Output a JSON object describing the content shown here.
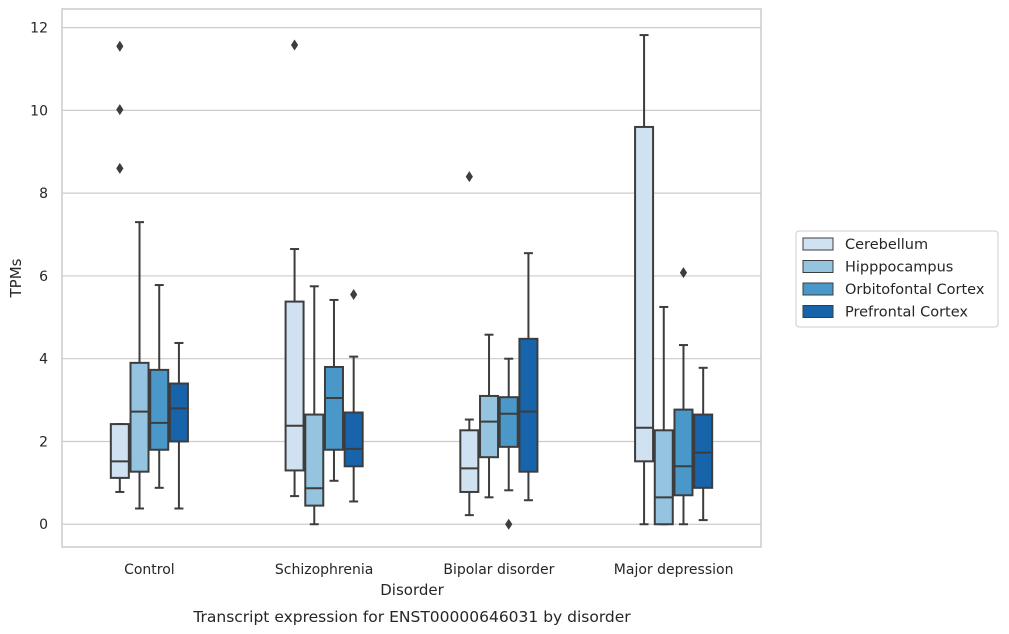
{
  "chart_data": {
    "type": "box",
    "xlabel": "Disorder",
    "ylabel": "TPMs",
    "caption": "Transcript expression for ENST00000646031 by disorder",
    "ylim": [
      -0.55,
      12.45
    ],
    "yticks": [
      0,
      2,
      4,
      6,
      8,
      10,
      12
    ],
    "grid": true,
    "legend_position": "right",
    "categories": [
      "Control",
      "Schizophrenia",
      "Bipolar disorder",
      "Major depression"
    ],
    "series": [
      {
        "name": "Cerebellum",
        "color": "#d0e1f2",
        "boxes": [
          {
            "whislo": 0.78,
            "q1": 1.12,
            "med": 1.52,
            "q3": 2.42,
            "whishi": 2.42,
            "fliers": [
              8.6,
              10.02,
              11.55
            ]
          },
          {
            "whislo": 0.68,
            "q1": 1.3,
            "med": 2.38,
            "q3": 5.38,
            "whishi": 6.65,
            "fliers": [
              11.58
            ]
          },
          {
            "whislo": 0.22,
            "q1": 0.78,
            "med": 1.35,
            "q3": 2.27,
            "whishi": 2.53,
            "fliers": [
              8.4
            ]
          },
          {
            "whislo": 0.0,
            "q1": 1.52,
            "med": 2.33,
            "q3": 9.6,
            "whishi": 11.82,
            "fliers": []
          }
        ]
      },
      {
        "name": "Hipppocampus",
        "color": "#94c4df",
        "boxes": [
          {
            "whislo": 0.38,
            "q1": 1.27,
            "med": 2.72,
            "q3": 3.9,
            "whishi": 7.3,
            "fliers": []
          },
          {
            "whislo": 0.0,
            "q1": 0.45,
            "med": 0.87,
            "q3": 2.65,
            "whishi": 5.75,
            "fliers": []
          },
          {
            "whislo": 0.65,
            "q1": 1.62,
            "med": 2.48,
            "q3": 3.1,
            "whishi": 4.58,
            "fliers": []
          },
          {
            "whislo": 0.0,
            "q1": 0.0,
            "med": 0.65,
            "q3": 2.27,
            "whishi": 5.25,
            "fliers": []
          }
        ]
      },
      {
        "name": "Orbitofontal Cortex",
        "color": "#4a98c9",
        "boxes": [
          {
            "whislo": 0.88,
            "q1": 1.8,
            "med": 2.45,
            "q3": 3.73,
            "whishi": 5.78,
            "fliers": []
          },
          {
            "whislo": 1.05,
            "q1": 1.8,
            "med": 3.05,
            "q3": 3.8,
            "whishi": 5.42,
            "fliers": []
          },
          {
            "whislo": 0.82,
            "q1": 1.87,
            "med": 2.67,
            "q3": 3.07,
            "whishi": 4.0,
            "fliers": [
              0.0
            ]
          },
          {
            "whislo": 0.0,
            "q1": 0.7,
            "med": 1.4,
            "q3": 2.77,
            "whishi": 4.33,
            "fliers": [
              6.08
            ]
          }
        ]
      },
      {
        "name": "Prefrontal Cortex",
        "color": "#1764ab",
        "boxes": [
          {
            "whislo": 0.38,
            "q1": 2.0,
            "med": 2.8,
            "q3": 3.4,
            "whishi": 4.38,
            "fliers": []
          },
          {
            "whislo": 0.55,
            "q1": 1.4,
            "med": 1.82,
            "q3": 2.7,
            "whishi": 4.05,
            "fliers": [
              5.55
            ]
          },
          {
            "whislo": 0.58,
            "q1": 1.27,
            "med": 2.72,
            "q3": 4.48,
            "whishi": 6.55,
            "fliers": []
          },
          {
            "whislo": 0.1,
            "q1": 0.88,
            "med": 1.73,
            "q3": 2.65,
            "whishi": 3.78,
            "fliers": []
          }
        ]
      }
    ]
  }
}
